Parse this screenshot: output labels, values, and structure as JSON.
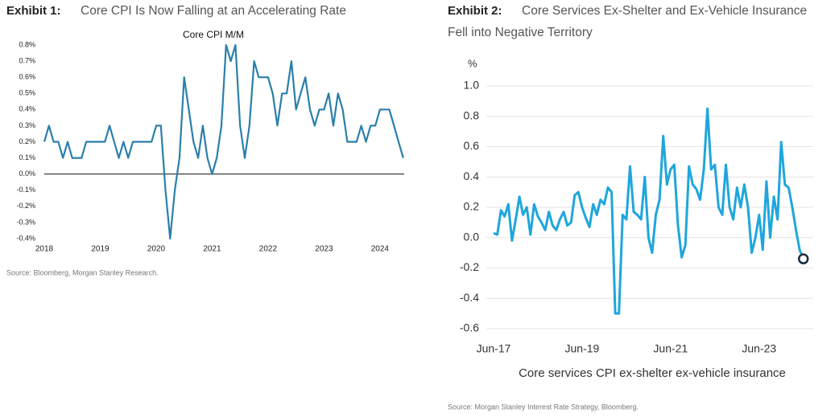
{
  "chart_data": [
    {
      "type": "line",
      "exhibit": "Exhibit 1:",
      "title": "Core CPI Is Now Falling at an Accelerating Rate",
      "chart_title": "Core CPI M/M",
      "categories": [
        "2018",
        null,
        null,
        null,
        null,
        null,
        null,
        null,
        null,
        null,
        null,
        null,
        "2019",
        null,
        null,
        null,
        null,
        null,
        null,
        null,
        null,
        null,
        null,
        null,
        "2020",
        null,
        null,
        null,
        null,
        null,
        null,
        null,
        null,
        null,
        null,
        null,
        "2021",
        null,
        null,
        null,
        null,
        null,
        null,
        null,
        null,
        null,
        null,
        null,
        "2022",
        null,
        null,
        null,
        null,
        null,
        null,
        null,
        null,
        null,
        null,
        null,
        "2023",
        null,
        null,
        null,
        null,
        null,
        null,
        null,
        null,
        null,
        null,
        null,
        "2024",
        null,
        null,
        null,
        null,
        null
      ],
      "values": [
        0.2,
        0.3,
        0.2,
        0.2,
        0.1,
        0.2,
        0.1,
        0.1,
        0.1,
        0.2,
        0.2,
        0.2,
        0.2,
        0.2,
        0.3,
        0.2,
        0.1,
        0.2,
        0.1,
        0.2,
        0.2,
        0.2,
        0.2,
        0.2,
        0.3,
        0.3,
        -0.1,
        -0.4,
        -0.1,
        0.1,
        0.6,
        0.4,
        0.2,
        0.1,
        0.3,
        0.1,
        0.0,
        0.1,
        0.3,
        0.8,
        0.7,
        0.8,
        0.3,
        0.1,
        0.3,
        0.7,
        0.6,
        0.6,
        0.6,
        0.5,
        0.3,
        0.5,
        0.5,
        0.7,
        0.4,
        0.5,
        0.6,
        0.4,
        0.3,
        0.4,
        0.4,
        0.5,
        0.3,
        0.5,
        0.4,
        0.2,
        0.2,
        0.2,
        0.3,
        0.2,
        0.3,
        0.3,
        0.4,
        0.4,
        0.4,
        0.3,
        0.2,
        0.1
      ],
      "color": "#2a7fab",
      "ylim": [
        -0.4,
        0.8
      ],
      "yticks": [
        {
          "value": 0.8,
          "label": "0.8%"
        },
        {
          "value": 0.7,
          "label": "0.7%"
        },
        {
          "value": 0.6,
          "label": "0.6%"
        },
        {
          "value": 0.5,
          "label": "0.5%"
        },
        {
          "value": 0.4,
          "label": "0.4%"
        },
        {
          "value": 0.3,
          "label": "0.3%"
        },
        {
          "value": 0.2,
          "label": "0.2%"
        },
        {
          "value": 0.1,
          "label": "0.1%"
        },
        {
          "value": 0,
          "label": "0.0%"
        },
        {
          "value": -0.1,
          "label": "-0.1%"
        },
        {
          "value": -0.2,
          "label": "-0.2%"
        },
        {
          "value": -0.3,
          "label": "-0.3%"
        },
        {
          "value": -0.4,
          "label": "-0.4%"
        }
      ],
      "zero_line": true,
      "source": "Source: Bloomberg, Morgan Stanley Research."
    },
    {
      "type": "line",
      "exhibit": "Exhibit 2:",
      "title_line1": "Core Services Ex-Shelter and Ex-Vehicle Insurance",
      "title_line2": "Fell into Negative Territory",
      "y_unit": "%",
      "categories": [
        "Jun-17",
        null,
        null,
        null,
        null,
        null,
        null,
        null,
        null,
        null,
        null,
        null,
        null,
        null,
        null,
        null,
        null,
        null,
        null,
        null,
        null,
        null,
        null,
        null,
        "Jun-19",
        null,
        null,
        null,
        null,
        null,
        null,
        null,
        null,
        null,
        null,
        null,
        null,
        null,
        null,
        null,
        null,
        null,
        null,
        null,
        null,
        null,
        null,
        null,
        "Jun-21",
        null,
        null,
        null,
        null,
        null,
        null,
        null,
        null,
        null,
        null,
        null,
        null,
        null,
        null,
        null,
        null,
        null,
        null,
        null,
        null,
        null,
        null,
        null,
        "Jun-23",
        null,
        null,
        null,
        null,
        null,
        null,
        null,
        null,
        null,
        null,
        null,
        null
      ],
      "series": [
        {
          "name": "Core services CPI ex-shelter ex-vehicle insurance",
          "color": "#1fa6dc",
          "values": [
            0.03,
            0.02,
            0.18,
            0.14,
            0.22,
            -0.02,
            0.12,
            0.27,
            0.15,
            0.2,
            0.02,
            0.22,
            0.14,
            0.1,
            0.05,
            0.17,
            0.08,
            0.05,
            0.12,
            0.17,
            0.08,
            0.1,
            0.28,
            0.3,
            0.2,
            0.13,
            0.07,
            0.22,
            0.15,
            0.25,
            0.22,
            0.33,
            0.3,
            -0.5,
            -0.5,
            0.15,
            0.12,
            0.47,
            0.17,
            0.15,
            0.12,
            0.4,
            0.0,
            -0.1,
            0.15,
            0.25,
            0.67,
            0.35,
            0.45,
            0.48,
            0.08,
            -0.13,
            -0.05,
            0.47,
            0.35,
            0.32,
            0.25,
            0.45,
            0.85,
            0.45,
            0.48,
            0.2,
            0.15,
            0.48,
            0.2,
            0.12,
            0.33,
            0.2,
            0.35,
            0.2,
            -0.1,
            0.0,
            0.15,
            -0.08,
            0.37,
            0.0,
            0.27,
            0.12,
            0.63,
            0.35,
            0.33,
            0.2,
            0.05,
            -0.08,
            -0.14
          ]
        }
      ],
      "ylim": [
        -0.6,
        1.0
      ],
      "yticks": [
        {
          "value": 1,
          "label": "1.0"
        },
        0.8,
        0.6,
        0.4,
        0.2,
        {
          "value": 0,
          "label": "0.0"
        },
        -0.2,
        -0.4,
        -0.6
      ],
      "grid": true,
      "highlight_last": true,
      "source": "Source: Morgan Stanley Interest Rate Strategy, Bloomberg."
    }
  ]
}
